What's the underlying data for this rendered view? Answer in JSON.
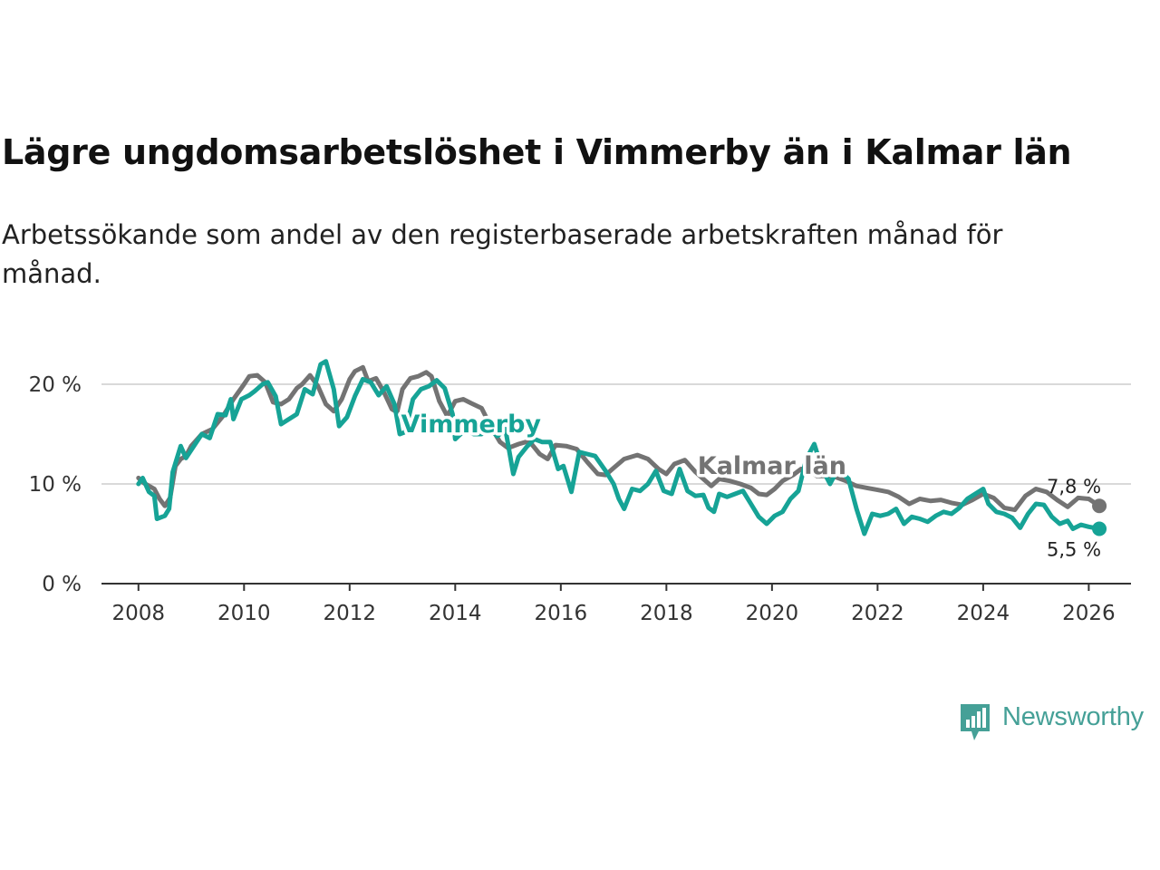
{
  "title": "Lägre ungdomsarbetslöshet i Vimmerby än i Kalmar län",
  "subtitle": "Arbetssökande som andel av den registerbaserade arbetskraften månad för månad.",
  "logo": {
    "text": "Newsworthy",
    "color": "#45a097"
  },
  "chart_data": {
    "type": "line",
    "title": "Lägre ungdomsarbetslöshet i Vimmerby än i Kalmar län",
    "xlabel": "",
    "ylabel": "",
    "xlim": [
      2007.3,
      2026.8
    ],
    "ylim": [
      0,
      24
    ],
    "grid": true,
    "y_ticks": [
      {
        "value": 0,
        "label": "0 %"
      },
      {
        "value": 10,
        "label": "10 %"
      },
      {
        "value": 20,
        "label": "20 %"
      }
    ],
    "x_ticks": [
      {
        "value": 2008,
        "label": "2008"
      },
      {
        "value": 2010,
        "label": "2010"
      },
      {
        "value": 2012,
        "label": "2012"
      },
      {
        "value": 2014,
        "label": "2014"
      },
      {
        "value": 2016,
        "label": "2016"
      },
      {
        "value": 2018,
        "label": "2018"
      },
      {
        "value": 2020,
        "label": "2020"
      },
      {
        "value": 2022,
        "label": "2022"
      },
      {
        "value": 2024,
        "label": "2024"
      },
      {
        "value": 2026,
        "label": "2026"
      }
    ],
    "series": [
      {
        "name": "Kalmar län",
        "color": "#737373",
        "label": "Kalmar län",
        "label_anchor": {
          "x": 2020.0,
          "y": 11.0
        },
        "end_label": "7,8 %",
        "points": [
          [
            2008.0,
            10.6
          ],
          [
            2008.1,
            10.1
          ],
          [
            2008.2,
            9.8
          ],
          [
            2008.3,
            9.5
          ],
          [
            2008.4,
            8.5
          ],
          [
            2008.5,
            7.8
          ],
          [
            2008.6,
            8.6
          ],
          [
            2008.7,
            11.8
          ],
          [
            2008.8,
            12.5
          ],
          [
            2008.9,
            12.8
          ],
          [
            2009.0,
            13.8
          ],
          [
            2009.2,
            15.0
          ],
          [
            2009.4,
            15.5
          ],
          [
            2009.6,
            16.8
          ],
          [
            2009.8,
            18.5
          ],
          [
            2010.0,
            20.0
          ],
          [
            2010.1,
            20.8
          ],
          [
            2010.25,
            20.9
          ],
          [
            2010.4,
            20.2
          ],
          [
            2010.55,
            18.2
          ],
          [
            2010.7,
            18.0
          ],
          [
            2010.85,
            18.5
          ],
          [
            2011.0,
            19.6
          ],
          [
            2011.1,
            20.0
          ],
          [
            2011.25,
            20.9
          ],
          [
            2011.4,
            19.8
          ],
          [
            2011.55,
            18.0
          ],
          [
            2011.7,
            17.3
          ],
          [
            2011.85,
            18.5
          ],
          [
            2012.0,
            20.5
          ],
          [
            2012.1,
            21.3
          ],
          [
            2012.25,
            21.7
          ],
          [
            2012.35,
            20.3
          ],
          [
            2012.5,
            20.6
          ],
          [
            2012.65,
            19.2
          ],
          [
            2012.8,
            17.5
          ],
          [
            2012.9,
            17.2
          ],
          [
            2013.0,
            19.5
          ],
          [
            2013.15,
            20.6
          ],
          [
            2013.3,
            20.8
          ],
          [
            2013.45,
            21.2
          ],
          [
            2013.55,
            20.8
          ],
          [
            2013.7,
            18.3
          ],
          [
            2013.85,
            16.8
          ],
          [
            2014.0,
            18.3
          ],
          [
            2014.15,
            18.5
          ],
          [
            2014.3,
            18.1
          ],
          [
            2014.5,
            17.6
          ],
          [
            2014.7,
            15.5
          ],
          [
            2014.85,
            14.2
          ],
          [
            2015.0,
            13.6
          ],
          [
            2015.2,
            14.0
          ],
          [
            2015.4,
            14.3
          ],
          [
            2015.6,
            13.0
          ],
          [
            2015.75,
            12.5
          ],
          [
            2015.9,
            13.9
          ],
          [
            2016.1,
            13.8
          ],
          [
            2016.3,
            13.5
          ],
          [
            2016.5,
            12.2
          ],
          [
            2016.7,
            11.0
          ],
          [
            2016.85,
            10.9
          ],
          [
            2017.0,
            11.6
          ],
          [
            2017.2,
            12.5
          ],
          [
            2017.45,
            12.9
          ],
          [
            2017.65,
            12.5
          ],
          [
            2017.85,
            11.5
          ],
          [
            2018.0,
            11.0
          ],
          [
            2018.15,
            12.0
          ],
          [
            2018.35,
            12.4
          ],
          [
            2018.55,
            11.2
          ],
          [
            2018.7,
            10.5
          ],
          [
            2018.85,
            9.8
          ],
          [
            2019.0,
            10.5
          ],
          [
            2019.2,
            10.3
          ],
          [
            2019.4,
            10.0
          ],
          [
            2019.6,
            9.6
          ],
          [
            2019.75,
            9.0
          ],
          [
            2019.9,
            8.9
          ],
          [
            2020.05,
            9.5
          ],
          [
            2020.2,
            10.3
          ],
          [
            2020.4,
            10.9
          ],
          [
            2020.55,
            11.5
          ],
          [
            2020.7,
            11.4
          ],
          [
            2020.85,
            10.8
          ],
          [
            2021.0,
            10.8
          ],
          [
            2021.2,
            10.7
          ],
          [
            2021.4,
            10.3
          ],
          [
            2021.6,
            9.8
          ],
          [
            2021.8,
            9.6
          ],
          [
            2022.0,
            9.4
          ],
          [
            2022.2,
            9.2
          ],
          [
            2022.4,
            8.7
          ],
          [
            2022.6,
            8.0
          ],
          [
            2022.8,
            8.5
          ],
          [
            2023.0,
            8.3
          ],
          [
            2023.2,
            8.4
          ],
          [
            2023.4,
            8.1
          ],
          [
            2023.6,
            7.9
          ],
          [
            2023.8,
            8.4
          ],
          [
            2024.0,
            9.0
          ],
          [
            2024.2,
            8.6
          ],
          [
            2024.4,
            7.6
          ],
          [
            2024.6,
            7.4
          ],
          [
            2024.8,
            8.8
          ],
          [
            2025.0,
            9.5
          ],
          [
            2025.2,
            9.2
          ],
          [
            2025.4,
            8.4
          ],
          [
            2025.6,
            7.7
          ],
          [
            2025.8,
            8.6
          ],
          [
            2026.0,
            8.5
          ],
          [
            2026.2,
            7.8
          ]
        ]
      },
      {
        "name": "Vimmerby",
        "color": "#16a396",
        "label": "Vimmerby",
        "label_anchor": {
          "x": 2014.3,
          "y": 15.2
        },
        "end_label": "5,5 %",
        "points": [
          [
            2008.0,
            10.0
          ],
          [
            2008.08,
            10.6
          ],
          [
            2008.2,
            9.2
          ],
          [
            2008.3,
            8.8
          ],
          [
            2008.35,
            6.5
          ],
          [
            2008.5,
            6.8
          ],
          [
            2008.58,
            7.5
          ],
          [
            2008.65,
            11.2
          ],
          [
            2008.8,
            13.8
          ],
          [
            2008.9,
            12.6
          ],
          [
            2009.05,
            13.8
          ],
          [
            2009.2,
            15.0
          ],
          [
            2009.35,
            14.6
          ],
          [
            2009.5,
            17.0
          ],
          [
            2009.65,
            16.9
          ],
          [
            2009.75,
            18.5
          ],
          [
            2009.8,
            16.5
          ],
          [
            2009.95,
            18.5
          ],
          [
            2010.1,
            18.9
          ],
          [
            2010.2,
            19.3
          ],
          [
            2010.35,
            20.0
          ],
          [
            2010.45,
            20.2
          ],
          [
            2010.6,
            18.8
          ],
          [
            2010.7,
            16.0
          ],
          [
            2010.85,
            16.5
          ],
          [
            2011.0,
            17.0
          ],
          [
            2011.15,
            19.5
          ],
          [
            2011.3,
            19.0
          ],
          [
            2011.45,
            22.0
          ],
          [
            2011.55,
            22.3
          ],
          [
            2011.7,
            19.5
          ],
          [
            2011.8,
            15.8
          ],
          [
            2011.95,
            16.7
          ],
          [
            2012.1,
            18.8
          ],
          [
            2012.25,
            20.5
          ],
          [
            2012.4,
            20.2
          ],
          [
            2012.55,
            18.9
          ],
          [
            2012.7,
            19.8
          ],
          [
            2012.85,
            18.0
          ],
          [
            2012.95,
            15.0
          ],
          [
            2013.05,
            15.2
          ],
          [
            2013.2,
            18.5
          ],
          [
            2013.35,
            19.5
          ],
          [
            2013.5,
            19.8
          ],
          [
            2013.65,
            20.4
          ],
          [
            2013.8,
            19.6
          ],
          [
            2013.95,
            17.0
          ],
          [
            2014.0,
            14.5
          ],
          [
            2014.2,
            15.5
          ],
          [
            2014.35,
            15.0
          ],
          [
            2014.5,
            15.0
          ],
          [
            2014.65,
            15.5
          ],
          [
            2014.8,
            14.8
          ],
          [
            2014.95,
            15.5
          ],
          [
            2015.1,
            11.0
          ],
          [
            2015.2,
            12.7
          ],
          [
            2015.35,
            13.7
          ],
          [
            2015.5,
            14.5
          ],
          [
            2015.65,
            14.2
          ],
          [
            2015.8,
            14.2
          ],
          [
            2015.95,
            11.5
          ],
          [
            2016.05,
            11.8
          ],
          [
            2016.2,
            9.2
          ],
          [
            2016.35,
            13.2
          ],
          [
            2016.5,
            13.0
          ],
          [
            2016.65,
            12.8
          ],
          [
            2016.85,
            11.3
          ],
          [
            2017.0,
            10.0
          ],
          [
            2017.1,
            8.5
          ],
          [
            2017.2,
            7.5
          ],
          [
            2017.35,
            9.5
          ],
          [
            2017.5,
            9.3
          ],
          [
            2017.65,
            10.0
          ],
          [
            2017.8,
            11.3
          ],
          [
            2017.95,
            9.3
          ],
          [
            2018.1,
            9.0
          ],
          [
            2018.25,
            11.5
          ],
          [
            2018.4,
            9.3
          ],
          [
            2018.55,
            8.8
          ],
          [
            2018.7,
            8.9
          ],
          [
            2018.8,
            7.6
          ],
          [
            2018.9,
            7.2
          ],
          [
            2019.0,
            9.0
          ],
          [
            2019.15,
            8.7
          ],
          [
            2019.3,
            9.0
          ],
          [
            2019.45,
            9.3
          ],
          [
            2019.6,
            8.0
          ],
          [
            2019.75,
            6.7
          ],
          [
            2019.9,
            6.0
          ],
          [
            2020.05,
            6.8
          ],
          [
            2020.2,
            7.2
          ],
          [
            2020.35,
            8.5
          ],
          [
            2020.5,
            9.3
          ],
          [
            2020.65,
            12.5
          ],
          [
            2020.8,
            14.0
          ],
          [
            2020.95,
            11.5
          ],
          [
            2021.1,
            10.0
          ],
          [
            2021.25,
            11.5
          ],
          [
            2021.45,
            10.5
          ],
          [
            2021.6,
            7.5
          ],
          [
            2021.75,
            5.0
          ],
          [
            2021.9,
            7.0
          ],
          [
            2022.05,
            6.8
          ],
          [
            2022.2,
            7.0
          ],
          [
            2022.35,
            7.5
          ],
          [
            2022.5,
            6.0
          ],
          [
            2022.65,
            6.7
          ],
          [
            2022.8,
            6.5
          ],
          [
            2022.95,
            6.2
          ],
          [
            2023.1,
            6.8
          ],
          [
            2023.25,
            7.2
          ],
          [
            2023.4,
            7.0
          ],
          [
            2023.55,
            7.6
          ],
          [
            2023.7,
            8.5
          ],
          [
            2023.85,
            9.0
          ],
          [
            2024.0,
            9.5
          ],
          [
            2024.1,
            8.0
          ],
          [
            2024.25,
            7.2
          ],
          [
            2024.4,
            7.0
          ],
          [
            2024.55,
            6.6
          ],
          [
            2024.7,
            5.6
          ],
          [
            2024.85,
            7.0
          ],
          [
            2025.0,
            8.0
          ],
          [
            2025.15,
            7.9
          ],
          [
            2025.3,
            6.7
          ],
          [
            2025.45,
            6.0
          ],
          [
            2025.6,
            6.3
          ],
          [
            2025.7,
            5.5
          ],
          [
            2025.85,
            5.9
          ],
          [
            2026.0,
            5.7
          ],
          [
            2026.2,
            5.5
          ]
        ]
      }
    ]
  }
}
